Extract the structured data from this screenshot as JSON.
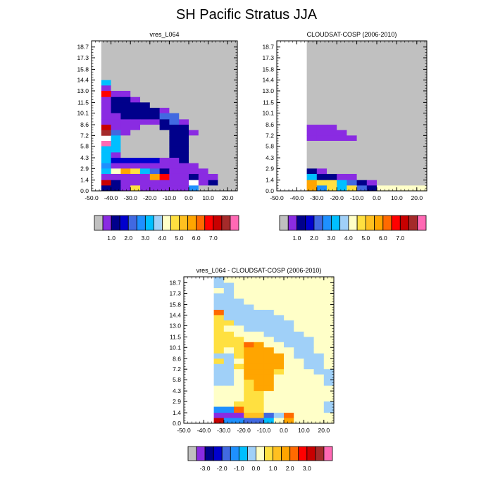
{
  "figure": {
    "title": "SH Pacific Stratus JJA"
  },
  "chart_data": [
    {
      "type": "heatmap",
      "title": "vres_L064",
      "xlabel": "",
      "ylabel": "",
      "xlim": [
        -50,
        25
      ],
      "ylim": [
        0,
        19.5
      ],
      "x_ticks": [
        "-50.0",
        "-40.0",
        "-30.0",
        "-20.0",
        "-10.0",
        "0.0",
        "10.0",
        "20.0"
      ],
      "x_tick_values": [
        -50,
        -40,
        -30,
        -20,
        -10,
        0,
        10,
        20
      ],
      "y_ticks": [
        "0.0",
        "1.4",
        "2.9",
        "4.3",
        "5.8",
        "7.2",
        "8.6",
        "10.1",
        "11.5",
        "13.0",
        "14.4",
        "15.8",
        "17.3",
        "18.7"
      ],
      "y_tick_values": [
        0,
        1.4,
        2.9,
        4.3,
        5.8,
        7.2,
        8.6,
        10.1,
        11.5,
        13.0,
        14.4,
        15.8,
        17.3,
        18.7
      ],
      "x_edges": [
        -45,
        -40,
        -35,
        -30,
        -25,
        -20,
        -15,
        -10,
        -5,
        0,
        5,
        10,
        15,
        20,
        25
      ],
      "y_edges": [
        0,
        0.7,
        1.4,
        2.2,
        2.9,
        3.6,
        4.3,
        5.0,
        5.8,
        6.5,
        7.2,
        7.9,
        8.6,
        9.3,
        10.1,
        10.8,
        11.5,
        12.2,
        13.0,
        13.7,
        14.4,
        15.1,
        15.8,
        16.6,
        17.3,
        18.0,
        18.7,
        19.5
      ],
      "missing_color": "#c0c0c0",
      "colorbar": {
        "colors": [
          "#c0c0c0",
          "#8a2be2",
          "#00008b",
          "#0000cd",
          "#4169e1",
          "#1e90ff",
          "#00bfff",
          "#a0d0f8",
          "#ffffc8",
          "#ffe040",
          "#ffc020",
          "#ffa500",
          "#ff6a00",
          "#ff0000",
          "#c80000",
          "#a52a2a",
          "#ff69b4"
        ],
        "tick_labels": [
          "1.0",
          "2.0",
          "3.0",
          "4.0",
          "5.0",
          "6.0",
          "7.0"
        ],
        "tick_positions": [
          2,
          4,
          6,
          8,
          10,
          12,
          14
        ]
      },
      "rows_top_to_bottom": [
        "MMMMMMMMMMMMMM",
        "MMMMMMMMMMMMMM",
        "MMMMMMMMMMMMMM",
        "MMMMMMMMMMMMMM",
        "MMMMMMMMMMMMMM",
        "MMMMMMMMMMMMMM",
        "MMMMMMMMMMMMMM",
        "BMMMMMMMMMMMMM",
        "PMMMMMMMMMMMMM",
        "rPPMMMMMMMMMMM",
        "PNNPMMMMMMMMMM",
        "PNNNNMMMMMMMMM",
        "PNNNNNPMMMMMMM",
        "PPNNNNDDMMMMMM",
        "PPPPPPNDPMMMMM",
        "kPPPMMNNNMMMMM",
        "dDPMMMMNNPMMMM",
        "wBMMMMMNNMMMMM",
        "cBMMMMMNNMMMMM",
        "BBMMMMMNNMMMMM",
        "BPMMMMMNNMMMMM",
        "BVVVVVPPNMMMMM",
        "RPPPPPPPPPMMMM",
        "BWOYBDNPPPPMMM",
        "PPPPPOrPPNPPMM",
        "kNPPPPPPPKPNMM",
        "NNPYPPPPPRMMMM"
      ]
    },
    {
      "type": "heatmap",
      "title": "CLOUDSAT-COSP (2006-2010)",
      "xlabel": "",
      "ylabel": "",
      "xlim": [
        -50,
        25
      ],
      "ylim": [
        0,
        19.5
      ],
      "x_ticks": [
        "-50.0",
        "-40.0",
        "-30.0",
        "-20.0",
        "-10.0",
        "0.0",
        "10.0",
        "20.0"
      ],
      "x_tick_values": [
        -50,
        -40,
        -30,
        -20,
        -10,
        0,
        10,
        20
      ],
      "y_ticks": [
        "0.0",
        "1.4",
        "2.9",
        "4.3",
        "5.8",
        "7.2",
        "8.6",
        "10.1",
        "11.5",
        "13.0",
        "14.4",
        "15.8",
        "17.3",
        "18.7"
      ],
      "y_tick_values": [
        0,
        1.4,
        2.9,
        4.3,
        5.8,
        7.2,
        8.6,
        10.1,
        11.5,
        13.0,
        14.4,
        15.8,
        17.3,
        18.7
      ],
      "x_edges": [
        -35,
        -30,
        -25,
        -20,
        -15,
        -10,
        -5,
        0,
        5,
        10,
        15,
        20,
        25
      ],
      "y_edges": [
        0,
        0.7,
        1.4,
        2.2,
        2.9,
        3.6,
        4.3,
        5.0,
        5.8,
        6.5,
        7.2,
        7.9,
        8.6,
        9.3,
        10.1,
        10.8,
        11.5,
        12.2,
        13.0,
        13.7,
        14.4,
        15.1,
        15.8,
        16.6,
        17.3,
        18.0,
        18.7,
        19.5
      ],
      "missing_color": "#c0c0c0",
      "colorbar": {
        "colors": [
          "#c0c0c0",
          "#8a2be2",
          "#00008b",
          "#0000cd",
          "#4169e1",
          "#1e90ff",
          "#00bfff",
          "#a0d0f8",
          "#ffffc8",
          "#ffe040",
          "#ffc020",
          "#ffa500",
          "#ff6a00",
          "#ff0000",
          "#c80000",
          "#a52a2a",
          "#ff69b4"
        ],
        "tick_labels": [
          "1.0",
          "2.0",
          "3.0",
          "4.0",
          "5.0",
          "6.0",
          "7.0"
        ],
        "tick_positions": [
          2,
          4,
          6,
          8,
          10,
          12,
          14
        ]
      },
      "rows_top_to_bottom": [
        "MMMMMMMMMMMM",
        "MMMMMMMMMMMM",
        "MMMMMMMMMMMM",
        "MMMMMMMMMMMM",
        "MMMMMMMMMMMM",
        "MMMMMMMMMMMM",
        "MMMMMMMMMMMM",
        "MMMMMMMMMMMM",
        "MMMMMMMMMMMM",
        "MMMMMMMMMMMM",
        "MMMMMMMMMMMM",
        "MMMMMMMMMMMM",
        "MMMMMMMMMMMM",
        "MMMMMMMMMMMM",
        "MMMMMMMMMMMM",
        "PPPMMMMMMMMM",
        "PPPPMMMMMMMM",
        "PPPPPMMMMMMM",
        "MMMMMMMMMMMM",
        "MMMMMMMMMMMM",
        "MMMMMMMMMMMM",
        "MMMMMMMMMMMM",
        "MMMMMMMMMMMM",
        "NPMMMMMMMMMM",
        "BNNPPMMMMMMM",
        "OYYBDNPMMMMM",
        "ORYBYDNWWWWW"
      ]
    },
    {
      "type": "heatmap",
      "title": "vres_L064 - CLOUDSAT-COSP (2006-2010)",
      "xlabel": "",
      "ylabel": "",
      "xlim": [
        -50,
        25
      ],
      "ylim": [
        0,
        19.5
      ],
      "x_ticks": [
        "-50.0",
        "-40.0",
        "-30.0",
        "-20.0",
        "-10.0",
        "0.0",
        "10.0",
        "20.0"
      ],
      "x_tick_values": [
        -50,
        -40,
        -30,
        -20,
        -10,
        0,
        10,
        20
      ],
      "y_ticks": [
        "0.0",
        "1.4",
        "2.9",
        "4.3",
        "5.8",
        "7.2",
        "8.6",
        "10.1",
        "11.5",
        "13.0",
        "14.4",
        "15.8",
        "17.3",
        "18.7"
      ],
      "y_tick_values": [
        0,
        1.4,
        2.9,
        4.3,
        5.8,
        7.2,
        8.6,
        10.1,
        11.5,
        13.0,
        14.4,
        15.8,
        17.3,
        18.7
      ],
      "x_edges": [
        -35,
        -30,
        -25,
        -20,
        -15,
        -10,
        -5,
        0,
        5,
        10,
        15,
        20,
        25
      ],
      "y_edges": [
        0,
        0.7,
        1.4,
        2.2,
        2.9,
        3.6,
        4.3,
        5.0,
        5.8,
        6.5,
        7.2,
        7.9,
        8.6,
        9.3,
        10.1,
        10.8,
        11.5,
        12.2,
        13.0,
        13.7,
        14.4,
        15.1,
        15.8,
        16.6,
        17.3,
        18.0,
        18.7,
        19.5
      ],
      "missing_color": "#c0c0c0",
      "colorbar": {
        "colors": [
          "#c0c0c0",
          "#8a2be2",
          "#00008b",
          "#0000cd",
          "#4169e1",
          "#1e90ff",
          "#00bfff",
          "#a0d0f8",
          "#ffffc8",
          "#ffe040",
          "#ffc020",
          "#ffa500",
          "#ff6a00",
          "#ff0000",
          "#c80000",
          "#a52a2a",
          "#ff69b4"
        ],
        "tick_labels": [
          "-3.0",
          "-2.0",
          "-1.0",
          "0.0",
          "1.0",
          "2.0",
          "3.0"
        ],
        "tick_positions": [
          2,
          4,
          6,
          8,
          10,
          12,
          14
        ]
      },
      "rows_top_to_bottom": [
        "LWWWWWWWWWWW",
        "LLWWWWWWWWWW",
        "WLWWWWWWWWWW",
        "LLWWWWWWWWWW",
        "LLLWWWWWWWWW",
        "LLLLWWWWWWWW",
        "ILLLLLWWWWWW",
        "YLLLLLLWWWWW",
        "YYLLLLLLWWWW",
        "YWWLLLLLWWWW",
        "YYWWWLLLLWWW",
        "YYYWWWLLLLWW",
        "YYYIOWWLLLWW",
        "YWYOOOWWLLWW",
        "LLYOOOOWLLLW",
        "YLWOOOOWWLLW",
        "LLYOOOOWWLLW",
        "LLWOOOYWWWLL",
        "LLWOOOWWWWWL",
        "LLWYOOWWWWWL",
        "WWWYOOWWWWWW",
        "WWWYYWWWWWWW",
        "WWWYYWWWWWWW",
        "WWYYYWWWWWWL",
        "RRIYYWWWWWWL",
        "PPPSSDLIWWWW",
        "kRRDDBWOWWWW"
      ]
    }
  ]
}
